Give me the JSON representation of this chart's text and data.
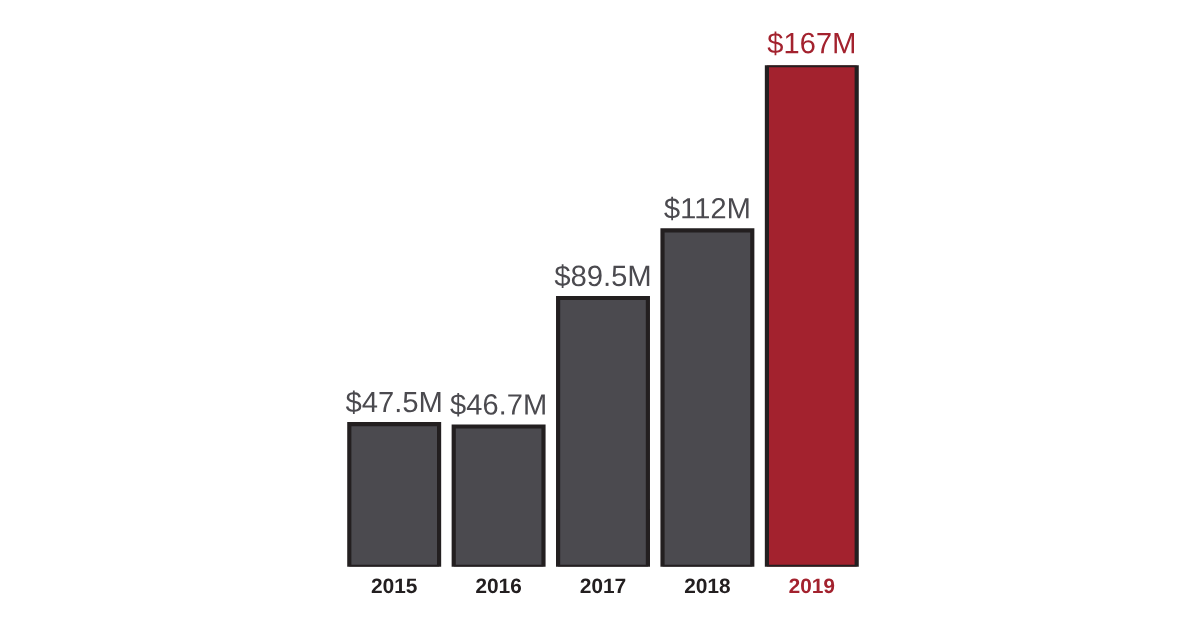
{
  "chart_data": {
    "type": "bar",
    "categories": [
      "2015",
      "2016",
      "2017",
      "2018",
      "2019"
    ],
    "values": [
      47.5,
      46.7,
      89.5,
      112,
      167
    ],
    "colors": [
      "#4b4a4f",
      "#4b4a4f",
      "#4b4a4f",
      "#4b4a4f",
      "#a3222e"
    ],
    "value_labels": [
      "$47.5M",
      "$46.7M",
      "$89.5M",
      "$112M",
      "$167M"
    ],
    "relative": false,
    "grid": false,
    "legend": false
  }
}
